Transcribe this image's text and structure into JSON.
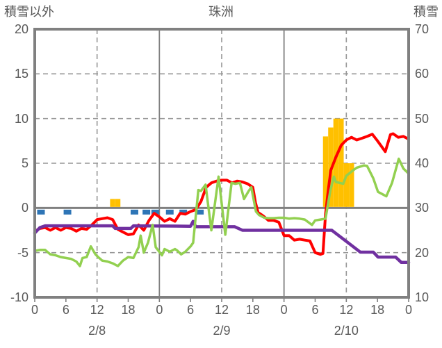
{
  "header": {
    "left_axis_title": "積雪以外",
    "chart_title": "珠洲",
    "right_axis_title": "積雪"
  },
  "chart_data": {
    "type": "line",
    "title": "珠洲",
    "x_axis": {
      "unit": "hour",
      "min": 0,
      "max": 72,
      "tick_interval": 6,
      "tick_labels": [
        "0",
        "6",
        "12",
        "18",
        "0",
        "6",
        "12",
        "18",
        "0",
        "6",
        "12",
        "18",
        "0"
      ],
      "date_labels": [
        {
          "label": "2/8",
          "hour": 12
        },
        {
          "label": "2/9",
          "hour": 36
        },
        {
          "label": "2/10",
          "hour": 60
        }
      ],
      "dashed_gridline_hours": [
        12,
        36,
        60
      ],
      "solid_gridline_hours": [
        24,
        48
      ]
    },
    "left_axis": {
      "title": "積雪以外",
      "min": -10,
      "max": 20,
      "ticks": [
        20,
        15,
        10,
        5,
        0,
        -5,
        -10
      ],
      "dashed_gridline_values": [
        15,
        10,
        5,
        -5
      ],
      "zero_line_value": 0
    },
    "right_axis": {
      "title": "積雪",
      "min": 10,
      "max": 70,
      "ticks": [
        70,
        60,
        50,
        40,
        30,
        20,
        10
      ]
    },
    "series": [
      {
        "name": "orange-bars",
        "type": "bar",
        "color": "#FFC000",
        "points": [
          [
            15,
            1
          ],
          [
            16,
            1
          ],
          [
            56,
            8
          ],
          [
            57,
            9
          ],
          [
            58,
            10
          ],
          [
            59,
            10
          ],
          [
            60,
            5
          ],
          [
            61,
            5
          ]
        ]
      },
      {
        "name": "blue-tick-marks",
        "type": "below-axis-tick",
        "color": "#2E75B6",
        "hours": [
          1.2,
          6.3,
          19.2,
          21.5,
          23.2,
          26,
          28.6,
          31.8
        ]
      },
      {
        "name": "red-line",
        "type": "line",
        "color": "#FF0000",
        "width": 4,
        "points": [
          [
            0,
            -2.6
          ],
          [
            1,
            -2.3
          ],
          [
            2,
            -2.2
          ],
          [
            3,
            -2.5
          ],
          [
            4,
            -2.2
          ],
          [
            5,
            -2.5
          ],
          [
            6,
            -2.2
          ],
          [
            7,
            -2.3
          ],
          [
            8,
            -2.6
          ],
          [
            9,
            -2.3
          ],
          [
            10,
            -2.4
          ],
          [
            11,
            -1.9
          ],
          [
            12,
            -1.3
          ],
          [
            13,
            -1.2
          ],
          [
            14,
            -1.1
          ],
          [
            15,
            -1.3
          ],
          [
            16,
            -2.4
          ],
          [
            17,
            -2.7
          ],
          [
            18,
            -3.0
          ],
          [
            19,
            -2.9
          ],
          [
            20,
            -1.9
          ],
          [
            21,
            -2.5
          ],
          [
            22,
            -1.4
          ],
          [
            23,
            -0.6
          ],
          [
            24,
            -1.0
          ],
          [
            25,
            -1.5
          ],
          [
            26,
            -1.2
          ],
          [
            27,
            -1.5
          ],
          [
            28,
            -0.6
          ],
          [
            29,
            -0.7
          ],
          [
            30,
            -0.4
          ],
          [
            31,
            -0.2
          ],
          [
            32,
            0.7
          ],
          [
            33,
            2.3
          ],
          [
            34,
            2.8
          ],
          [
            35,
            3.0
          ],
          [
            36,
            3.1
          ],
          [
            37,
            3.1
          ],
          [
            38,
            2.8
          ],
          [
            39,
            3.0
          ],
          [
            40,
            2.9
          ],
          [
            41,
            2.7
          ],
          [
            42,
            2.3
          ],
          [
            42.5,
            0.6
          ],
          [
            43,
            -0.5
          ],
          [
            44,
            -0.9
          ],
          [
            45,
            -1.4
          ],
          [
            46,
            -1.4
          ],
          [
            47,
            -1.6
          ],
          [
            48,
            -3.1
          ],
          [
            49,
            -3.1
          ],
          [
            50,
            -3.6
          ],
          [
            51,
            -3.5
          ],
          [
            52,
            -3.6
          ],
          [
            53,
            -3.7
          ],
          [
            54,
            -5.0
          ],
          [
            55,
            -5.2
          ],
          [
            55.5,
            -5.1
          ],
          [
            56,
            -0.7
          ],
          [
            56.5,
            1.9
          ],
          [
            57,
            4.2
          ],
          [
            58,
            5.7
          ],
          [
            59,
            7.0
          ],
          [
            60,
            7.6
          ],
          [
            61,
            7.9
          ],
          [
            62,
            7.6
          ],
          [
            63,
            7.8
          ],
          [
            64,
            8.0
          ],
          [
            65,
            8.25
          ],
          [
            66,
            7.5
          ],
          [
            67.5,
            6.3
          ],
          [
            68.5,
            8.2
          ],
          [
            69,
            8.3
          ],
          [
            70,
            7.9
          ],
          [
            71,
            8.0
          ],
          [
            72,
            7.7
          ]
        ]
      },
      {
        "name": "purple-line",
        "type": "line",
        "color": "#7030A0",
        "width": 4.5,
        "points": [
          [
            0,
            -2.8
          ],
          [
            1,
            -2.2
          ],
          [
            2,
            -2.0
          ],
          [
            15,
            -2.0
          ],
          [
            15.5,
            -2.3
          ],
          [
            18.5,
            -2.3
          ],
          [
            19,
            -2.0
          ],
          [
            30,
            -2.05
          ],
          [
            30.5,
            -1.5
          ],
          [
            31,
            -2.1
          ],
          [
            38.5,
            -2.1
          ],
          [
            40,
            -2.5
          ],
          [
            57.2,
            -2.5
          ],
          [
            62.7,
            -4.95
          ],
          [
            65.2,
            -4.95
          ],
          [
            66.1,
            -5.5
          ],
          [
            69.5,
            -5.5
          ],
          [
            70.6,
            -6.1
          ],
          [
            72,
            -6.1
          ]
        ]
      },
      {
        "name": "green-line",
        "type": "line",
        "color": "#92D050",
        "width": 3.5,
        "points": [
          [
            0,
            -4.8
          ],
          [
            1,
            -4.7
          ],
          [
            2,
            -4.7
          ],
          [
            3,
            -5.2
          ],
          [
            4,
            -5.3
          ],
          [
            5,
            -5.5
          ],
          [
            6,
            -5.6
          ],
          [
            7,
            -5.7
          ],
          [
            8,
            -6.0
          ],
          [
            8.7,
            -6.5
          ],
          [
            9.2,
            -5.6
          ],
          [
            10,
            -5.5
          ],
          [
            10.8,
            -4.3
          ],
          [
            11.7,
            -5.2
          ],
          [
            12.2,
            -5.5
          ],
          [
            13,
            -5.9
          ],
          [
            14,
            -6.0
          ],
          [
            15,
            -6.2
          ],
          [
            16,
            -6.5
          ],
          [
            17,
            -5.9
          ],
          [
            18,
            -5.5
          ],
          [
            19,
            -5.6
          ],
          [
            20,
            -4.4
          ],
          [
            20.4,
            -3.1
          ],
          [
            21,
            -5.0
          ],
          [
            21.8,
            -3.9
          ],
          [
            22.7,
            -1.9
          ],
          [
            23.3,
            -4.4
          ],
          [
            24.5,
            -5.3
          ],
          [
            25,
            -4.6
          ],
          [
            26,
            -4.9
          ],
          [
            27,
            -4.6
          ],
          [
            27.5,
            -4.8
          ],
          [
            28.2,
            -5.2
          ],
          [
            29,
            -4.9
          ],
          [
            30,
            -4.3
          ],
          [
            30.5,
            -3.9
          ],
          [
            31.5,
            2.0
          ],
          [
            32,
            1.9
          ],
          [
            32.9,
            2.6
          ],
          [
            34,
            -2.5
          ],
          [
            35.4,
            3.5
          ],
          [
            36.7,
            -3.0
          ],
          [
            37.9,
            2.8
          ],
          [
            38.6,
            2.7
          ],
          [
            39.5,
            2.8
          ],
          [
            40.3,
            1.0
          ],
          [
            41.2,
            1.9
          ],
          [
            41.7,
            2.3
          ],
          [
            42.6,
            -0.4
          ],
          [
            43.2,
            -0.8
          ],
          [
            44.2,
            -1.1
          ],
          [
            45,
            -1.15
          ],
          [
            46,
            -1.15
          ],
          [
            47,
            -1.1
          ],
          [
            48,
            -1.1
          ],
          [
            49,
            -1.2
          ],
          [
            50,
            -1.15
          ],
          [
            51,
            -1.2
          ],
          [
            52,
            -1.3
          ],
          [
            53.4,
            -1.9
          ],
          [
            54,
            -1.4
          ],
          [
            55,
            -1.3
          ],
          [
            56,
            -1.2
          ],
          [
            56.9,
            1.9
          ],
          [
            57.6,
            3.5
          ],
          [
            58,
            2.9
          ],
          [
            59.4,
            2.7
          ],
          [
            60,
            3.6
          ],
          [
            61.4,
            4.25
          ],
          [
            62,
            4.5
          ],
          [
            63.4,
            4.75
          ],
          [
            64,
            4.7
          ],
          [
            65.2,
            3.3
          ],
          [
            66.1,
            1.8
          ],
          [
            67.7,
            1.3
          ],
          [
            68.8,
            2.8
          ],
          [
            70.1,
            5.5
          ],
          [
            71,
            4.4
          ],
          [
            71.9,
            3.9
          ]
        ]
      }
    ],
    "style": {
      "frame_color": "#808080",
      "zero_line_color": "#808080",
      "dashed_grid_color": "#969696",
      "text_color": "#595959",
      "background": "#ffffff"
    }
  }
}
